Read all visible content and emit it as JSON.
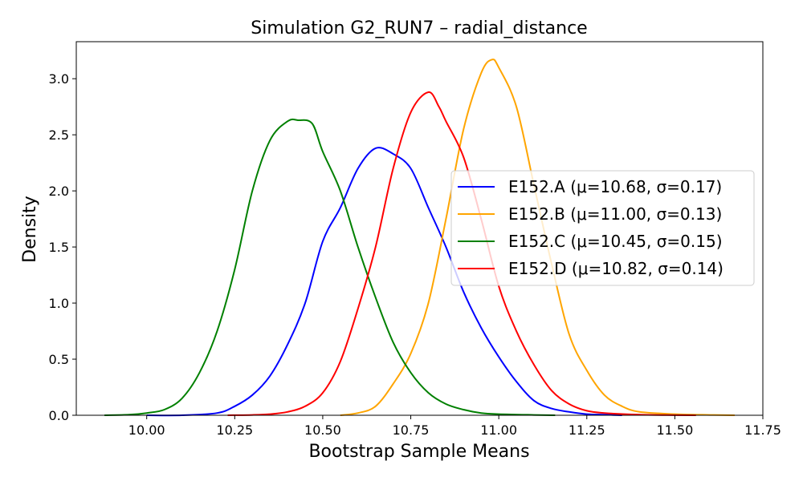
{
  "chart_data": {
    "type": "line",
    "title": "Simulation G2_RUN7 – radial_distance",
    "xlabel": "Bootstrap Sample Means",
    "ylabel": "Density",
    "xlim": [
      9.8,
      11.75
    ],
    "ylim": [
      0.0,
      3.33
    ],
    "xticks": [
      "10.00",
      "10.25",
      "10.50",
      "10.75",
      "11.00",
      "11.25",
      "11.50",
      "11.75"
    ],
    "yticks": [
      "0.0",
      "0.5",
      "1.0",
      "1.5",
      "2.0",
      "2.5",
      "3.0"
    ],
    "grid": false,
    "legend_position": "center-right",
    "series": [
      {
        "name": "E152.A (μ=10.68, σ=0.17)",
        "color": "#0000ff",
        "x": [
          10.0,
          10.1,
          10.2,
          10.25,
          10.3,
          10.35,
          10.4,
          10.45,
          10.5,
          10.55,
          10.6,
          10.65,
          10.7,
          10.75,
          10.8,
          10.85,
          10.9,
          10.95,
          11.0,
          11.05,
          11.1,
          11.15,
          11.2,
          11.25,
          11.3,
          11.35
        ],
        "y": [
          0.0,
          0.0,
          0.02,
          0.08,
          0.18,
          0.35,
          0.63,
          1.0,
          1.55,
          1.85,
          2.2,
          2.38,
          2.33,
          2.2,
          1.85,
          1.5,
          1.1,
          0.78,
          0.52,
          0.3,
          0.13,
          0.06,
          0.03,
          0.01,
          0.005,
          0.0
        ]
      },
      {
        "name": "E152.B (μ=11.00, σ=0.13)",
        "color": "#ffa500",
        "x": [
          10.55,
          10.6,
          10.65,
          10.7,
          10.75,
          10.8,
          10.85,
          10.9,
          10.95,
          10.98,
          11.0,
          11.05,
          11.1,
          11.15,
          11.2,
          11.25,
          11.3,
          11.35,
          11.4,
          11.5,
          11.6,
          11.67
        ],
        "y": [
          0.0,
          0.02,
          0.08,
          0.28,
          0.55,
          1.0,
          1.75,
          2.55,
          3.05,
          3.17,
          3.1,
          2.75,
          2.05,
          1.35,
          0.72,
          0.4,
          0.18,
          0.08,
          0.03,
          0.01,
          0.003,
          0.0
        ]
      },
      {
        "name": "E152.C (μ=10.45, σ=0.15)",
        "color": "#008000",
        "x": [
          9.88,
          9.95,
          10.0,
          10.05,
          10.1,
          10.15,
          10.2,
          10.25,
          10.3,
          10.35,
          10.4,
          10.43,
          10.47,
          10.5,
          10.55,
          10.6,
          10.65,
          10.7,
          10.75,
          10.8,
          10.85,
          10.9,
          10.95,
          11.0,
          11.1,
          11.16
        ],
        "y": [
          0.0,
          0.005,
          0.02,
          0.05,
          0.15,
          0.38,
          0.75,
          1.3,
          2.0,
          2.45,
          2.62,
          2.63,
          2.6,
          2.35,
          2.0,
          1.5,
          1.05,
          0.65,
          0.38,
          0.2,
          0.1,
          0.05,
          0.02,
          0.01,
          0.003,
          0.0
        ]
      },
      {
        "name": "E152.D (μ=10.82, σ=0.14)",
        "color": "#ff0000",
        "x": [
          10.23,
          10.3,
          10.35,
          10.4,
          10.45,
          10.5,
          10.55,
          10.6,
          10.65,
          10.7,
          10.75,
          10.8,
          10.83,
          10.85,
          10.9,
          10.95,
          11.0,
          11.05,
          11.1,
          11.15,
          11.2,
          11.25,
          11.3,
          11.4,
          11.5,
          11.56
        ],
        "y": [
          0.0,
          0.003,
          0.01,
          0.03,
          0.08,
          0.2,
          0.48,
          0.95,
          1.5,
          2.2,
          2.7,
          2.88,
          2.75,
          2.62,
          2.3,
          1.75,
          1.15,
          0.75,
          0.45,
          0.22,
          0.1,
          0.04,
          0.02,
          0.005,
          0.001,
          0.0
        ]
      }
    ]
  }
}
